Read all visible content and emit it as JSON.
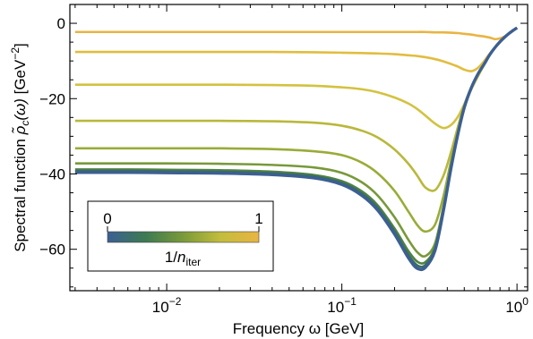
{
  "chart_data": {
    "type": "line",
    "xlabel": "Frequency ω [GeV]",
    "ylabel_main": "Spectral function ",
    "ylabel_symbol": "ρ̃",
    "ylabel_sub": "c",
    "ylabel_arg": "(ω)",
    "ylabel_unit": " [GeV",
    "ylabel_exp": "−2",
    "ylabel_close": "]",
    "xscale": "log",
    "xlim": [
      0.0028,
      1.15
    ],
    "ylim": [
      -71,
      5
    ],
    "x_ticks": [
      {
        "value": 0.01,
        "base": "10",
        "exp": "−2"
      },
      {
        "value": 0.1,
        "base": "10",
        "exp": "−1"
      },
      {
        "value": 1,
        "base": "10",
        "exp": "0"
      }
    ],
    "y_ticks": [
      {
        "value": 0,
        "label": "0"
      },
      {
        "value": -20,
        "label": "−20"
      },
      {
        "value": -40,
        "label": "−40"
      },
      {
        "value": -60,
        "label": "−60"
      }
    ],
    "x": [
      0.003,
      0.006,
      0.01,
      0.02,
      0.04,
      0.07,
      0.1,
      0.13,
      0.16,
      0.2,
      0.24,
      0.27,
      0.3,
      0.34,
      0.38,
      0.42,
      0.46,
      0.5,
      0.55,
      0.6,
      0.65,
      0.7,
      0.75,
      0.8,
      0.85,
      0.9,
      0.95,
      1.0
    ],
    "series": [
      {
        "t": 1.0,
        "color": "#e9b443",
        "values": [
          -2.3,
          -2.3,
          -2.3,
          -2.3,
          -2.3,
          -2.3,
          -2.3,
          -2.3,
          -2.3,
          -2.3,
          -2.3,
          -2.3,
          -2.3,
          -2.4,
          -2.4,
          -2.5,
          -2.6,
          -2.8,
          -3.0,
          -3.3,
          -3.5,
          -3.8,
          -4.2,
          -4.0,
          -3.5,
          -2.7,
          -1.9,
          -1.2
        ]
      },
      {
        "t": 0.91,
        "color": "#e1bd3e",
        "values": [
          -7.6,
          -7.6,
          -7.6,
          -7.6,
          -7.6,
          -7.7,
          -7.8,
          -7.9,
          -8.0,
          -8.2,
          -8.5,
          -8.7,
          -9.0,
          -9.5,
          -10.1,
          -10.8,
          -11.5,
          -12.3,
          -12.7,
          -11.8,
          -10.0,
          -8.0,
          -6.3,
          -4.8,
          -3.6,
          -2.6,
          -1.8,
          -1.2
        ]
      },
      {
        "t": 0.75,
        "color": "#d3c240",
        "values": [
          -16.3,
          -16.3,
          -16.3,
          -16.3,
          -16.4,
          -16.6,
          -17.0,
          -17.5,
          -18.3,
          -19.7,
          -21.3,
          -22.8,
          -24.5,
          -26.6,
          -27.8,
          -27.0,
          -24.8,
          -21.5,
          -17.4,
          -14.0,
          -11.0,
          -8.3,
          -6.4,
          -4.9,
          -3.7,
          -2.7,
          -1.9,
          -1.2
        ]
      },
      {
        "t": 0.6,
        "color": "#b9b83c",
        "values": [
          -25.9,
          -25.9,
          -25.9,
          -25.9,
          -26.0,
          -26.4,
          -27.2,
          -28.5,
          -30.3,
          -33.5,
          -37.3,
          -40.5,
          -43.6,
          -44.3,
          -40.5,
          -34.2,
          -27.5,
          -21.7,
          -16.8,
          -13.4,
          -10.8,
          -8.3,
          -6.4,
          -4.9,
          -3.7,
          -2.7,
          -1.9,
          -1.2
        ]
      },
      {
        "t": 0.45,
        "color": "#9aab38",
        "values": [
          -33.2,
          -33.2,
          -33.2,
          -33.2,
          -33.4,
          -34.0,
          -35.0,
          -37.0,
          -39.8,
          -44.5,
          -50.0,
          -53.6,
          -55.3,
          -53.5,
          -46.0,
          -36.5,
          -28.5,
          -22.0,
          -16.9,
          -13.4,
          -10.8,
          -8.3,
          -6.4,
          -4.9,
          -3.7,
          -2.7,
          -1.9,
          -1.2
        ]
      },
      {
        "t": 0.3,
        "color": "#78993a",
        "values": [
          -37.2,
          -37.2,
          -37.2,
          -37.3,
          -37.6,
          -38.3,
          -39.7,
          -42.2,
          -45.7,
          -51.5,
          -57.5,
          -60.8,
          -61.8,
          -58.5,
          -48.7,
          -37.8,
          -29.0,
          -22.2,
          -17.0,
          -13.4,
          -10.8,
          -8.3,
          -6.4,
          -4.9,
          -3.7,
          -2.7,
          -1.9,
          -1.2
        ]
      },
      {
        "t": 0.16,
        "color": "#4f8242",
        "values": [
          -38.8,
          -38.8,
          -38.9,
          -39.0,
          -39.4,
          -40.3,
          -41.9,
          -44.6,
          -48.3,
          -54.5,
          -60.5,
          -63.3,
          -63.4,
          -59.5,
          -49.2,
          -38.1,
          -29.2,
          -22.3,
          -17.0,
          -13.4,
          -10.8,
          -8.3,
          -6.4,
          -4.9,
          -3.7,
          -2.7,
          -1.9,
          -1.2
        ]
      },
      {
        "t": 0.07,
        "color": "#3a6d62",
        "values": [
          -39.2,
          -39.2,
          -39.3,
          -39.4,
          -39.8,
          -40.7,
          -42.4,
          -45.2,
          -49.0,
          -55.3,
          -61.5,
          -64.3,
          -64.2,
          -60.0,
          -49.5,
          -38.3,
          -29.3,
          -22.4,
          -17.0,
          -13.4,
          -10.8,
          -8.3,
          -6.4,
          -4.9,
          -3.7,
          -2.7,
          -1.9,
          -1.2
        ]
      },
      {
        "t": 0.0,
        "color": "#3c5f93",
        "values": [
          -39.6,
          -39.6,
          -39.7,
          -39.8,
          -40.2,
          -41.1,
          -42.8,
          -45.7,
          -49.6,
          -56.0,
          -62.3,
          -65.1,
          -64.8,
          -60.4,
          -49.8,
          -38.5,
          -29.4,
          -22.4,
          -17.0,
          -13.4,
          -10.8,
          -8.3,
          -6.4,
          -4.9,
          -3.7,
          -2.7,
          -1.9,
          -1.2
        ]
      }
    ],
    "colorbar": {
      "label_pre": "1/",
      "label_n": "n",
      "label_sub": "iter",
      "min_label": "0",
      "max_label": "1",
      "stops": [
        "#3c5f93",
        "#3d7a52",
        "#7a9a3a",
        "#c3bd3c",
        "#e9b443"
      ]
    }
  }
}
